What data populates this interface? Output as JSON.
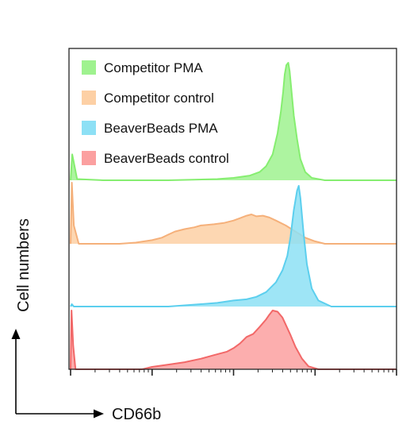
{
  "chart_data": {
    "type": "area",
    "subtype": "stacked-offset-histograms",
    "xlabel": "CD66b",
    "ylabel": "Cell numbers",
    "x_scale": "log",
    "xlim": [
      0,
      1
    ],
    "legend_position": "top-left",
    "grid": false,
    "series": [
      {
        "name": "Competitor PMA",
        "color": "#9ff28f",
        "line_color": "#86ee70",
        "x": [
          0.0,
          0.005,
          0.02,
          0.1,
          0.3,
          0.45,
          0.5,
          0.55,
          0.58,
          0.6,
          0.62,
          0.635,
          0.645,
          0.652,
          0.657,
          0.662,
          0.668,
          0.672,
          0.678,
          0.685,
          0.695,
          0.705,
          0.72,
          0.74,
          0.78,
          0.9,
          1.0
        ],
        "values": [
          0.0,
          0.22,
          0.01,
          0.0,
          0.0,
          0.01,
          0.02,
          0.04,
          0.07,
          0.12,
          0.22,
          0.4,
          0.58,
          0.75,
          0.9,
          0.98,
          1.0,
          0.93,
          0.75,
          0.55,
          0.35,
          0.18,
          0.07,
          0.02,
          0.0,
          0.0,
          0.0
        ]
      },
      {
        "name": "Competitor control",
        "color": "#fdd0a5",
        "line_color": "#f5b07a",
        "x": [
          0.0,
          0.004,
          0.01,
          0.025,
          0.15,
          0.2,
          0.25,
          0.28,
          0.3,
          0.32,
          0.35,
          0.38,
          0.4,
          0.44,
          0.47,
          0.5,
          0.52,
          0.54,
          0.555,
          0.57,
          0.59,
          0.61,
          0.63,
          0.66,
          0.69,
          0.72,
          0.75,
          0.78,
          1.0
        ],
        "values": [
          0.0,
          1.0,
          0.3,
          0.0,
          0.0,
          0.02,
          0.06,
          0.1,
          0.15,
          0.2,
          0.24,
          0.27,
          0.3,
          0.32,
          0.34,
          0.38,
          0.42,
          0.46,
          0.48,
          0.45,
          0.46,
          0.43,
          0.38,
          0.3,
          0.2,
          0.1,
          0.04,
          0.0,
          0.0
        ]
      },
      {
        "name": "BeaverBeads PMA",
        "color": "#8de0f5",
        "line_color": "#5ccfee",
        "x": [
          0.0,
          0.004,
          0.01,
          0.3,
          0.4,
          0.45,
          0.5,
          0.54,
          0.57,
          0.6,
          0.63,
          0.65,
          0.665,
          0.675,
          0.685,
          0.695,
          0.7,
          0.705,
          0.715,
          0.725,
          0.74,
          0.76,
          0.8,
          1.0
        ],
        "values": [
          0.0,
          0.02,
          0.0,
          0.0,
          0.02,
          0.03,
          0.05,
          0.06,
          0.08,
          0.12,
          0.2,
          0.3,
          0.42,
          0.58,
          0.8,
          0.96,
          1.0,
          0.9,
          0.6,
          0.35,
          0.15,
          0.05,
          0.0,
          0.0
        ]
      },
      {
        "name": "BeaverBeads control",
        "color": "#fba0a0",
        "line_color": "#f26868",
        "x": [
          0.0,
          0.003,
          0.008,
          0.015,
          0.22,
          0.25,
          0.3,
          0.35,
          0.4,
          0.44,
          0.48,
          0.5,
          0.52,
          0.54,
          0.56,
          0.58,
          0.6,
          0.61,
          0.62,
          0.635,
          0.65,
          0.66,
          0.675,
          0.69,
          0.71,
          0.73,
          0.76,
          1.0
        ],
        "values": [
          0.0,
          1.0,
          0.4,
          0.0,
          0.0,
          0.04,
          0.08,
          0.12,
          0.18,
          0.24,
          0.3,
          0.36,
          0.44,
          0.55,
          0.6,
          0.72,
          0.85,
          0.93,
          1.0,
          0.98,
          0.88,
          0.76,
          0.58,
          0.38,
          0.18,
          0.05,
          0.0,
          0.0
        ]
      }
    ]
  }
}
